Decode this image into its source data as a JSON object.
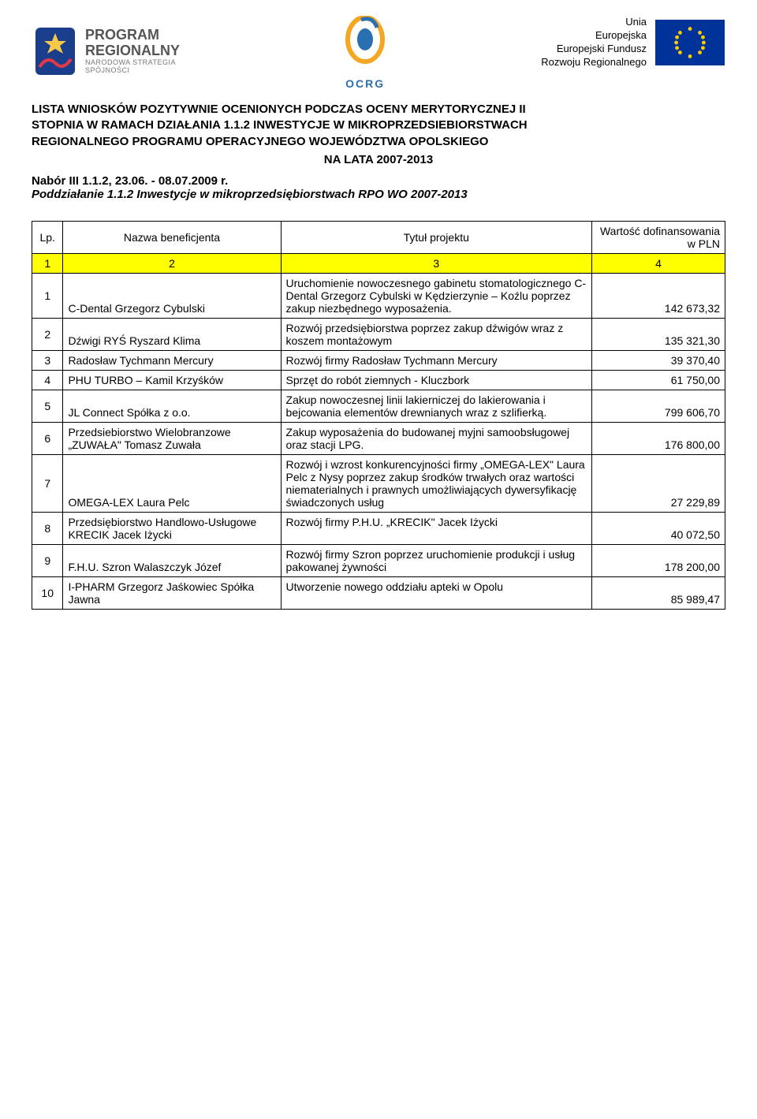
{
  "header": {
    "program_logo": {
      "line1": "PROGRAM",
      "line2": "REGIONALNY",
      "line3": "NARODOWA STRATEGIA SPÓJNOŚCI"
    },
    "ocrg_label": "OCRG",
    "eu_text": {
      "line1": "Unia",
      "line2": "Europejska",
      "line3": "Europejski Fundusz",
      "line4": "Rozwoju Regionalnego"
    }
  },
  "title": {
    "line1": "LISTA WNIOSKÓW POZYTYWNIE OCENIONYCH PODCZAS OCENY MERYTORYCZNEJ II",
    "line2": "STOPNIA W RAMACH DZIAŁANIA 1.1.2 INWESTYCJE W MIKROPRZEDSIEBIORSTWACH",
    "line3": "REGIONALNEGO PROGRAMU OPERACYJNEGO WOJEWÓDZTWA OPOLSKIEGO",
    "line4": "NA LATA 2007-2013"
  },
  "nabor": "Nabór III 1.1.2,  23.06. - 08.07.2009 r.",
  "poddz": "Poddziałanie 1.1.2 Inwestycje w mikroprzedsiębiorstwach RPO WO 2007-2013",
  "table": {
    "columns": {
      "lp": "Lp.",
      "beneficiary": "Nazwa beneficjenta",
      "title": "Tytuł projektu",
      "value": "Wartość dofinansowania w PLN"
    },
    "subheader": [
      "1",
      "2",
      "3",
      "4"
    ],
    "rows": [
      {
        "lp": "1",
        "beneficiary": "C-Dental Grzegorz Cybulski",
        "title": "Uruchomienie nowoczesnego gabinetu stomatologicznego C-Dental Grzegorz Cybulski w Kędzierzynie – Koźlu poprzez zakup niezbędnego wyposażenia.",
        "value": "142 673,32"
      },
      {
        "lp": "2",
        "beneficiary": "Dźwigi RYŚ Ryszard Klima",
        "title": "Rozwój przedsiębiorstwa poprzez zakup dźwigów wraz z koszem montażowym",
        "value": "135 321,30"
      },
      {
        "lp": "3",
        "beneficiary": "Radosław Tychmann Mercury",
        "title": "Rozwój firmy Radosław Tychmann Mercury",
        "value": "39 370,40"
      },
      {
        "lp": "4",
        "beneficiary": "PHU TURBO – Kamil Krzyśków",
        "title": "Sprzęt do robót ziemnych - Kluczbork",
        "value": "61 750,00"
      },
      {
        "lp": "5",
        "beneficiary": "JL Connect Spółka z o.o.",
        "title": "Zakup nowoczesnej linii lakierniczej do lakierowania i bejcowania elementów drewnianych wraz z szlifierką.",
        "value": "799 606,70"
      },
      {
        "lp": "6",
        "beneficiary": "Przedsiebiorstwo Wielobranzowe „ZUWAŁA\" Tomasz Zuwała",
        "title": "Zakup wyposażenia do budowanej myjni samoobsługowej oraz stacji LPG.",
        "value": "176 800,00"
      },
      {
        "lp": "7",
        "beneficiary": "OMEGA-LEX Laura Pelc",
        "title": "Rozwój i wzrost konkurencyjności firmy „OMEGA-LEX\" Laura Pelc  z Nysy poprzez zakup środków trwałych oraz wartości niematerialnych i prawnych umożliwiających dywersyfikację świadczonych usług",
        "value": "27 229,89"
      },
      {
        "lp": "8",
        "beneficiary": "Przedsiębiorstwo Handlowo-Usługowe KRECIK Jacek Iżycki",
        "title": "Rozwój firmy P.H.U. „KRECIK\" Jacek Iżycki",
        "value": "40 072,50"
      },
      {
        "lp": "9",
        "beneficiary": "F.H.U. Szron Walaszczyk Józef",
        "title": "Rozwój firmy Szron poprzez uruchomienie produkcji i usług pakowanej żywności",
        "value": "178 200,00"
      },
      {
        "lp": "10",
        "beneficiary": "I-PHARM Grzegorz Jaśkowiec Spółka Jawna",
        "title": "Utworzenie nowego oddziału apteki w Opolu",
        "value": "85 989,47"
      }
    ]
  },
  "colors": {
    "yellow": "#ffff00",
    "eu_blue": "#003399",
    "eu_gold": "#ffcc00",
    "black": "#000000",
    "white": "#ffffff"
  }
}
